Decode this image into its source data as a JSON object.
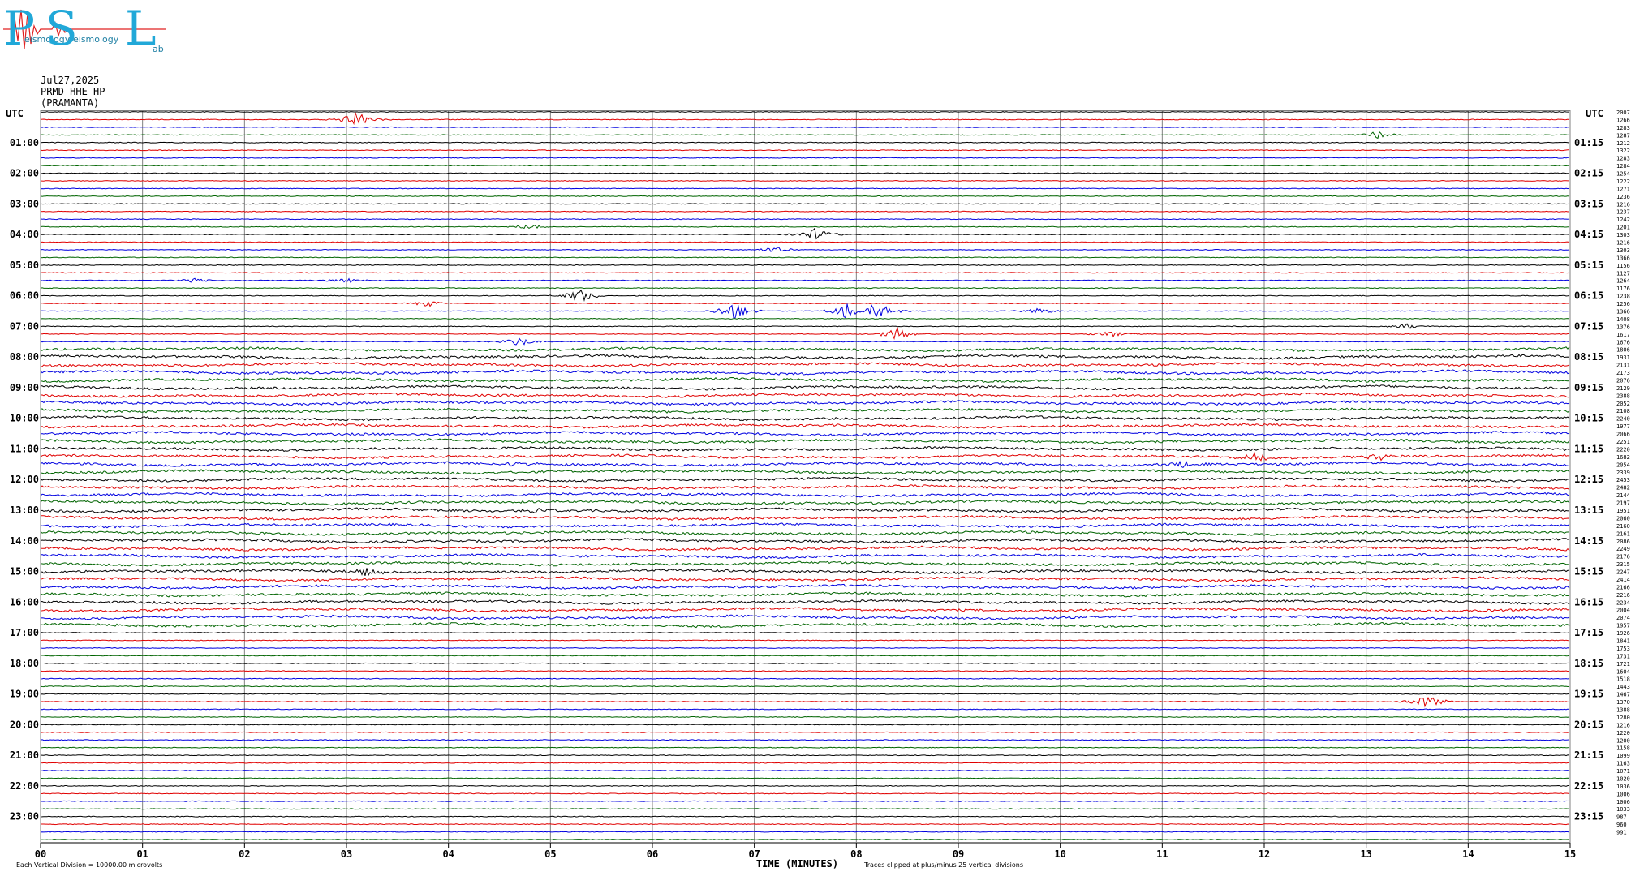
{
  "logo": {
    "letters": [
      "P",
      "S",
      "L"
    ],
    "words": [
      "eismology",
      "ab"
    ],
    "colors": {
      "text": "#21a8d8",
      "wave": "#e02020"
    }
  },
  "header": {
    "date": "Jul27,2025",
    "channel": "PRMD HHE HP --",
    "station": "(PRAMANTA)"
  },
  "chart_data": {
    "type": "line",
    "title": "",
    "xlabel": "TIME (MINUTES)",
    "ylabel": "",
    "x_ticks": [
      "00",
      "01",
      "02",
      "03",
      "04",
      "05",
      "06",
      "07",
      "08",
      "09",
      "10",
      "11",
      "12",
      "13",
      "14",
      "15"
    ],
    "xlim": [
      0,
      15
    ],
    "left_axis_title": "UTC",
    "right_axis_title": "UTC",
    "left_time_labels": [
      "01:00",
      "02:00",
      "03:00",
      "04:00",
      "05:00",
      "06:00",
      "07:00",
      "08:00",
      "09:00",
      "10:00",
      "11:00",
      "12:00",
      "13:00",
      "14:00",
      "15:00",
      "16:00",
      "17:00",
      "18:00",
      "19:00",
      "20:00",
      "21:00",
      "22:00",
      "23:00"
    ],
    "right_time_labels": [
      "01:15",
      "02:15",
      "03:15",
      "04:15",
      "05:15",
      "06:15",
      "07:15",
      "08:15",
      "09:15",
      "10:15",
      "11:15",
      "12:15",
      "13:15",
      "14:15",
      "15:15",
      "16:15",
      "17:15",
      "18:15",
      "19:15",
      "20:15",
      "21:15",
      "22:15",
      "23:15"
    ],
    "trace_colors": [
      "#000000",
      "#e00000",
      "#0000e0",
      "#006400"
    ],
    "trace_count": 96,
    "right_counts": [
      "2007",
      "1266",
      "1283",
      "1287",
      "1212",
      "1322",
      "1283",
      "1284",
      "1254",
      "1222",
      "1271",
      "1236",
      "1216",
      "1237",
      "1242",
      "1201",
      "1303",
      "1216",
      "1303",
      "1366",
      "1156",
      "1127",
      "1264",
      "1176",
      "1238",
      "1256",
      "1366",
      "1408",
      "1376",
      "1617",
      "1676",
      "1806",
      "1931",
      "2131",
      "2173",
      "2076",
      "2129",
      "2388",
      "2052",
      "2108",
      "2240",
      "1977",
      "2066",
      "2251",
      "2220",
      "1682",
      "2054",
      "2339",
      "2453",
      "2482",
      "2144",
      "2197",
      "1951",
      "2060",
      "2160",
      "2161",
      "2086",
      "2249",
      "2176",
      "2315",
      "2247",
      "2414",
      "2166",
      "2216",
      "2234",
      "2004",
      "2074",
      "1957",
      "1926",
      "1841",
      "1753",
      "1731",
      "1721",
      "1604",
      "1518",
      "1443",
      "1467",
      "1370",
      "1388",
      "1280",
      "1216",
      "1220",
      "1200",
      "1158",
      "1099",
      "1163",
      "1071",
      "1020",
      "1036",
      "1006",
      "1006",
      "1033",
      "987",
      "960",
      "991"
    ],
    "bursts": [
      {
        "trace": 1,
        "minute": 3.1,
        "amp": 10
      },
      {
        "trace": 3,
        "minute": 13.1,
        "amp": 5
      },
      {
        "trace": 15,
        "minute": 4.8,
        "amp": 4
      },
      {
        "trace": 16,
        "minute": 7.6,
        "amp": 9
      },
      {
        "trace": 18,
        "minute": 7.2,
        "amp": 4
      },
      {
        "trace": 22,
        "minute": 1.5,
        "amp": 3
      },
      {
        "trace": 22,
        "minute": 3.0,
        "amp": 4
      },
      {
        "trace": 24,
        "minute": 5.3,
        "amp": 9
      },
      {
        "trace": 25,
        "minute": 3.8,
        "amp": 4
      },
      {
        "trace": 26,
        "minute": 6.8,
        "amp": 12
      },
      {
        "trace": 26,
        "minute": 7.9,
        "amp": 10
      },
      {
        "trace": 26,
        "minute": 8.2,
        "amp": 12
      },
      {
        "trace": 26,
        "minute": 9.8,
        "amp": 4
      },
      {
        "trace": 28,
        "minute": 13.4,
        "amp": 4
      },
      {
        "trace": 29,
        "minute": 8.4,
        "amp": 8
      },
      {
        "trace": 29,
        "minute": 10.5,
        "amp": 4
      },
      {
        "trace": 30,
        "minute": 4.7,
        "amp": 6
      },
      {
        "trace": 45,
        "minute": 11.9,
        "amp": 5
      },
      {
        "trace": 45,
        "minute": 13.1,
        "amp": 7
      },
      {
        "trace": 46,
        "minute": 4.7,
        "amp": 5
      },
      {
        "trace": 46,
        "minute": 11.2,
        "amp": 5
      },
      {
        "trace": 52,
        "minute": 4.9,
        "amp": 5
      },
      {
        "trace": 60,
        "minute": 3.2,
        "amp": 5
      },
      {
        "trace": 77,
        "minute": 13.6,
        "amp": 9
      }
    ],
    "footnote_left": "Each Vertical Division = 10000.00 microvolts",
    "footnote_right": "Traces clipped at plus/minus 25 vertical divisions",
    "grid": true
  }
}
